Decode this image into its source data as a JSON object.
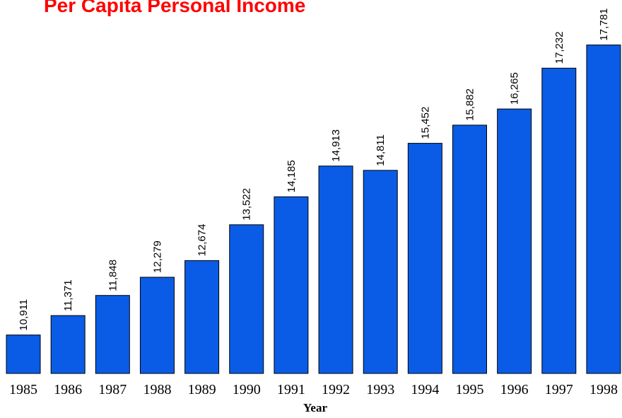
{
  "chart_data": {
    "type": "bar",
    "title": "Per Capita Personal Income",
    "x_label": "Year",
    "categories": [
      "1985",
      "1986",
      "1987",
      "1988",
      "1989",
      "1990",
      "1991",
      "1992",
      "1993",
      "1994",
      "1995",
      "1996",
      "1997",
      "1998"
    ],
    "values": [
      10911,
      11371,
      11848,
      12279,
      12674,
      13522,
      14185,
      14913,
      14811,
      15452,
      15882,
      16265,
      17232,
      17781
    ],
    "value_labels": [
      "10,911",
      "11,371",
      "11,848",
      "12,279",
      "12,674",
      "13,522",
      "14,185",
      "14,913",
      "14,811",
      "15,452",
      "15,882",
      "16,265",
      "17,232",
      "17,781"
    ],
    "color": "#0a5ce6",
    "ylim": [
      10000,
      18000
    ]
  }
}
